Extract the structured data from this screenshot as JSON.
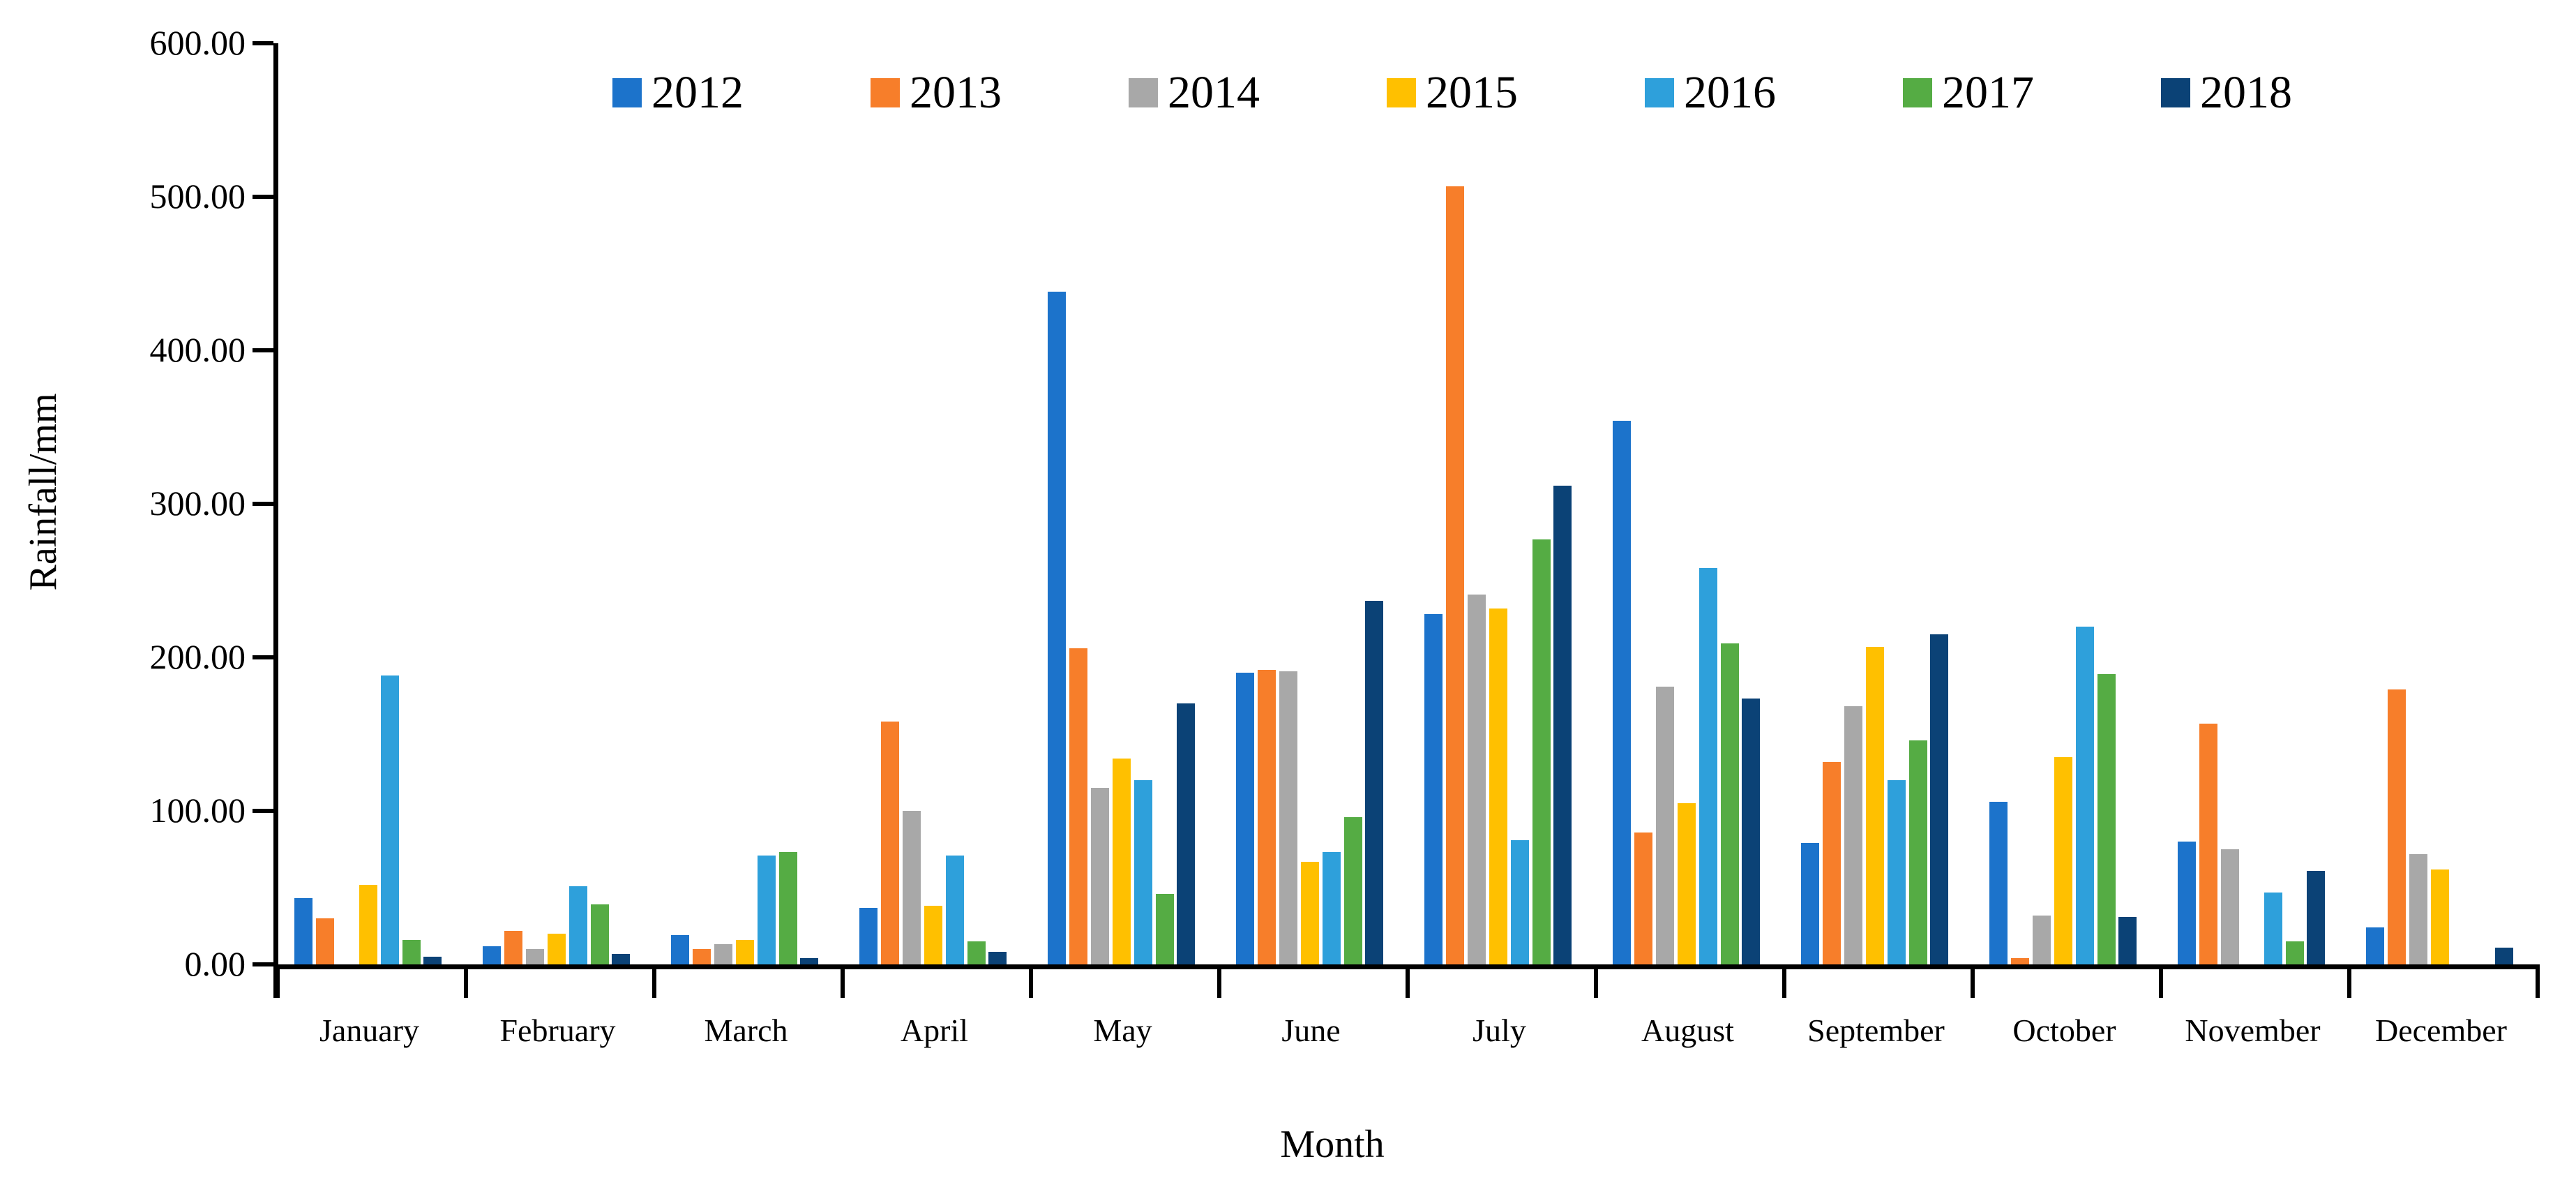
{
  "chart_data": {
    "type": "bar",
    "title": "",
    "xlabel": "Month",
    "ylabel": "Rainfall/mm",
    "ylim": [
      0,
      600
    ],
    "ytick_step": 100,
    "ytick_decimals": 2,
    "grid": false,
    "legend_position": "top",
    "categories": [
      "January",
      "February",
      "March",
      "April",
      "May",
      "June",
      "July",
      "August",
      "September",
      "October",
      "November",
      "December"
    ],
    "series": [
      {
        "name": "2012",
        "color": "#1C73CB",
        "values": [
          43,
          12,
          19,
          37,
          438,
          190,
          228,
          354,
          79,
          106,
          80,
          24
        ]
      },
      {
        "name": "2013",
        "color": "#F77E2A",
        "values": [
          30,
          22,
          10,
          158,
          206,
          192,
          507,
          86,
          132,
          4,
          157,
          179
        ]
      },
      {
        "name": "2014",
        "color": "#A8A8A8",
        "values": [
          0,
          10,
          13,
          100,
          115,
          191,
          241,
          181,
          168,
          32,
          75,
          72
        ]
      },
      {
        "name": "2015",
        "color": "#FFC000",
        "values": [
          52,
          20,
          16,
          38,
          134,
          67,
          232,
          105,
          207,
          135,
          0,
          62
        ]
      },
      {
        "name": "2016",
        "color": "#2EA0DB",
        "values": [
          188,
          51,
          71,
          71,
          120,
          73,
          81,
          258,
          120,
          220,
          47,
          0
        ]
      },
      {
        "name": "2017",
        "color": "#55AC44",
        "values": [
          16,
          39,
          73,
          15,
          46,
          96,
          277,
          209,
          146,
          189,
          15,
          0
        ]
      },
      {
        "name": "2018",
        "color": "#0B4276",
        "values": [
          5,
          7,
          4,
          8,
          170,
          237,
          312,
          173,
          215,
          31,
          61,
          11
        ]
      }
    ]
  }
}
